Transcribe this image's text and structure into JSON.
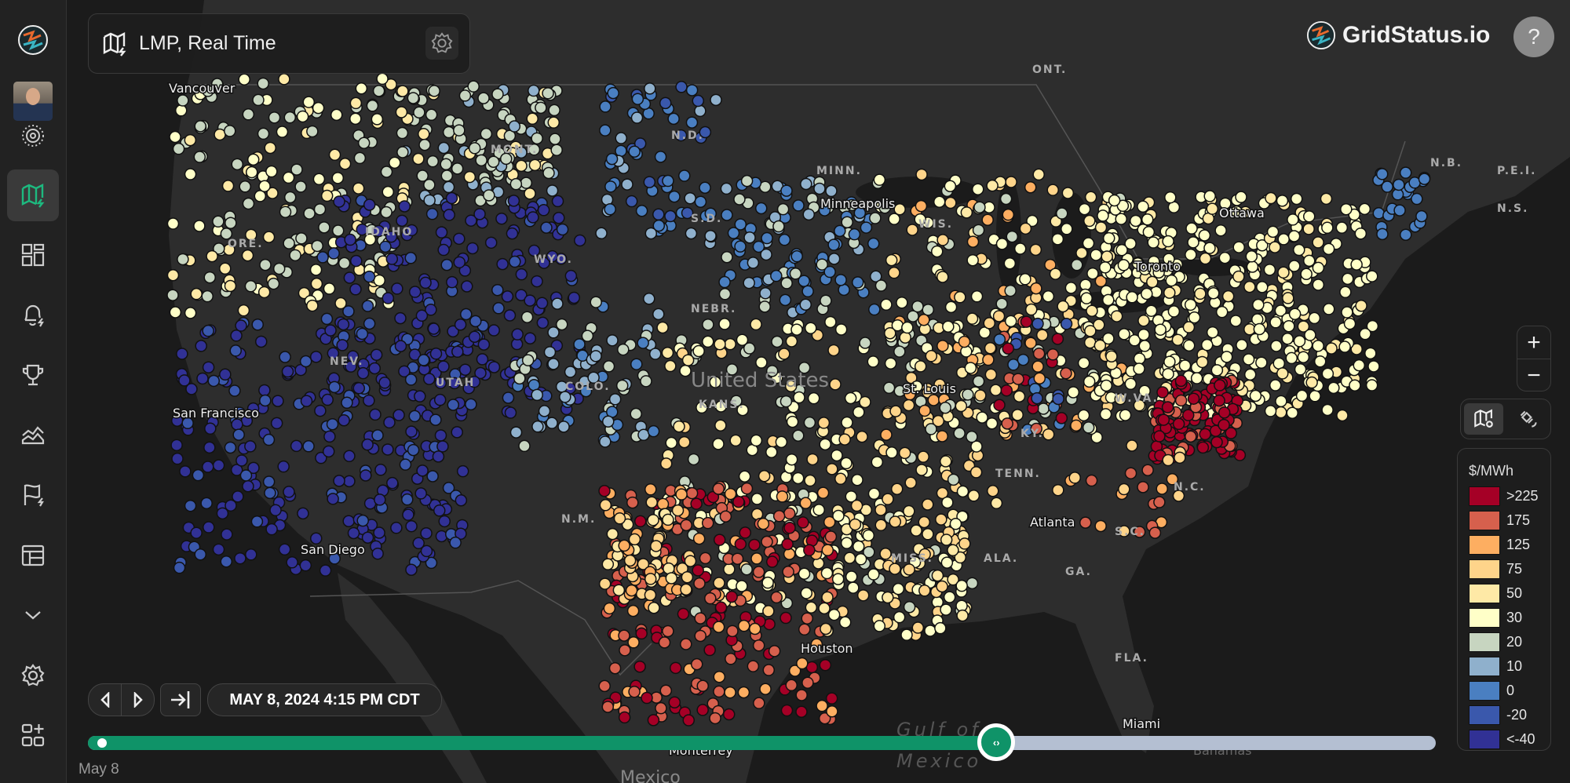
{
  "sidebar": {
    "items": [
      {
        "name": "logo",
        "icon": "gridstatus-logo-icon"
      },
      {
        "name": "avatar",
        "icon": "user-avatar"
      },
      {
        "name": "live",
        "icon": "radar-icon"
      },
      {
        "name": "map",
        "icon": "map-bolt-icon",
        "active": true
      },
      {
        "name": "dashboards",
        "icon": "dashboard-icon"
      },
      {
        "name": "alerts",
        "icon": "bell-bolt-icon"
      },
      {
        "name": "records",
        "icon": "trophy-icon"
      },
      {
        "name": "charts",
        "icon": "area-chart-icon"
      },
      {
        "name": "reports",
        "icon": "flag-bolt-icon"
      },
      {
        "name": "tables",
        "icon": "table-icon"
      },
      {
        "name": "more",
        "icon": "chevron-down-icon"
      },
      {
        "name": "settings",
        "icon": "gear-icon"
      },
      {
        "name": "add-widget",
        "icon": "apps-add-icon"
      }
    ],
    "accent": "#1db97f"
  },
  "header": {
    "title": "LMP, Real Time",
    "brand": "GridStatus.io",
    "help": "?"
  },
  "map_controls": {
    "zoom_in": "+",
    "zoom_out": "−",
    "styles": [
      {
        "icon": "map-pin-icon",
        "active": true
      },
      {
        "icon": "satellite-icon",
        "active": false
      }
    ]
  },
  "legend": {
    "title": "$/MWh",
    "items": [
      {
        "label": ">225",
        "color": "#a50026"
      },
      {
        "label": "175",
        "color": "#d6604d"
      },
      {
        "label": "125",
        "color": "#fdae61"
      },
      {
        "label": "75",
        "color": "#fed48a"
      },
      {
        "label": "50",
        "color": "#fee9a6"
      },
      {
        "label": "30",
        "color": "#ffffc8"
      },
      {
        "label": "20",
        "color": "#c7d5c0"
      },
      {
        "label": "10",
        "color": "#8fb0cc"
      },
      {
        "label": "0",
        "color": "#4a7fc1"
      },
      {
        "label": "-20",
        "color": "#3a58ac"
      },
      {
        "label": "<-40",
        "color": "#313195"
      }
    ]
  },
  "timeline": {
    "datetime": "MAY 8, 2024 4:15 PM CDT",
    "start_label": "May 8",
    "progress": 0.674
  },
  "map_labels": {
    "ont": "ONT.",
    "nd": "N.D.",
    "minn": "MINN.",
    "sd": "S.D.",
    "minneapolis": "Minneapolis",
    "wis": "WIS.",
    "idaho": "IDAHO",
    "ore": "ORE.",
    "nev": "NEV.",
    "utah": "UTAH",
    "colo": "COLO.",
    "wyo": "WYO.",
    "mont": "MONT.",
    "nebr": "NEBR.",
    "kans": "KANS.",
    "us": "United States",
    "stlouis": "St. Louis",
    "ky": "KY.",
    "tenn": "TENN.",
    "atlanta": "Atlanta",
    "sc": "S.C.",
    "nc": "N.C.",
    "wva": "W.VA.",
    "ga": "GA.",
    "ala": "ALA.",
    "miss": "MISS.",
    "fla": "FLA.",
    "miami": "Miami",
    "ottawa": "Ottawa",
    "toronto": "Toronto",
    "nb": "N.B.",
    "pei": "P.E.I.",
    "ns": "N.S.",
    "sf": "San Francisco",
    "sd_city": "San Diego",
    "vancouver": "Vancouver",
    "nm": "N.M.",
    "houston": "Houston",
    "monterrey": "Monterrey",
    "mexico": "Mexico",
    "gulf1": "Gulf of",
    "gulf2": "Mexico",
    "bahamas": "Bahamas"
  }
}
